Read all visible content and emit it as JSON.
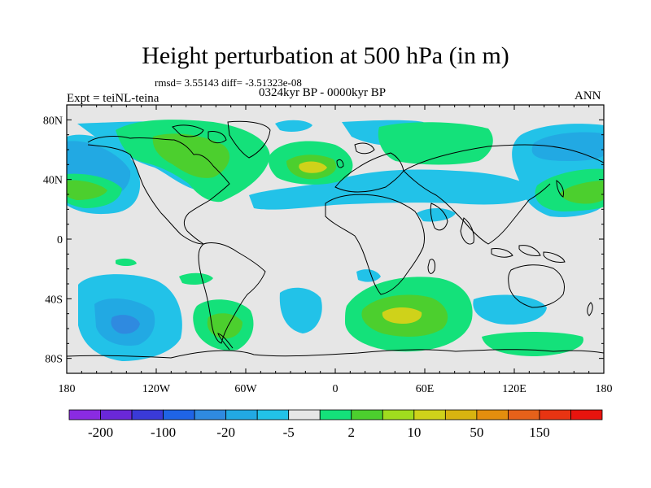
{
  "header": {
    "title": "Height perturbation at 500 hPa (in m)",
    "stats": "rmsd= 3.55143 diff= -3.51323e-08",
    "period": "0324kyr BP - 0000kyr BP",
    "experiment": "Expt = teiNL-teina",
    "season": "ANN"
  },
  "map": {
    "lat_labels": [
      "80N",
      "40N",
      "0",
      "40S",
      "80S"
    ],
    "lon_labels": [
      "180",
      "120W",
      "60W",
      "0",
      "60E",
      "120E",
      "180"
    ]
  },
  "colorbar": {
    "labels": [
      "-200",
      "-100",
      "-20",
      "-5",
      "2",
      "10",
      "50",
      "150"
    ],
    "colors": [
      "#8a2be2",
      "#6a28d8",
      "#3a3ad8",
      "#1f64e6",
      "#2f8ae0",
      "#22a9e3",
      "#22c2e8",
      "#e6e6e6",
      "#14e17a",
      "#4ccf2e",
      "#a0dc1e",
      "#cfd21a",
      "#d8b410",
      "#e48e0e",
      "#e6611a",
      "#e83412",
      "#e8140e"
    ]
  },
  "palette": {
    "background": "#e6e6e6",
    "neg_light": "#22c2e8",
    "neg_mid": "#22a9e3",
    "neg_strong": "#2f8ae0",
    "pos_light": "#14e17a",
    "pos_mid": "#4ccf2e",
    "pos_strong": "#a0dc1e",
    "pos_peak": "#cfd21a"
  }
}
